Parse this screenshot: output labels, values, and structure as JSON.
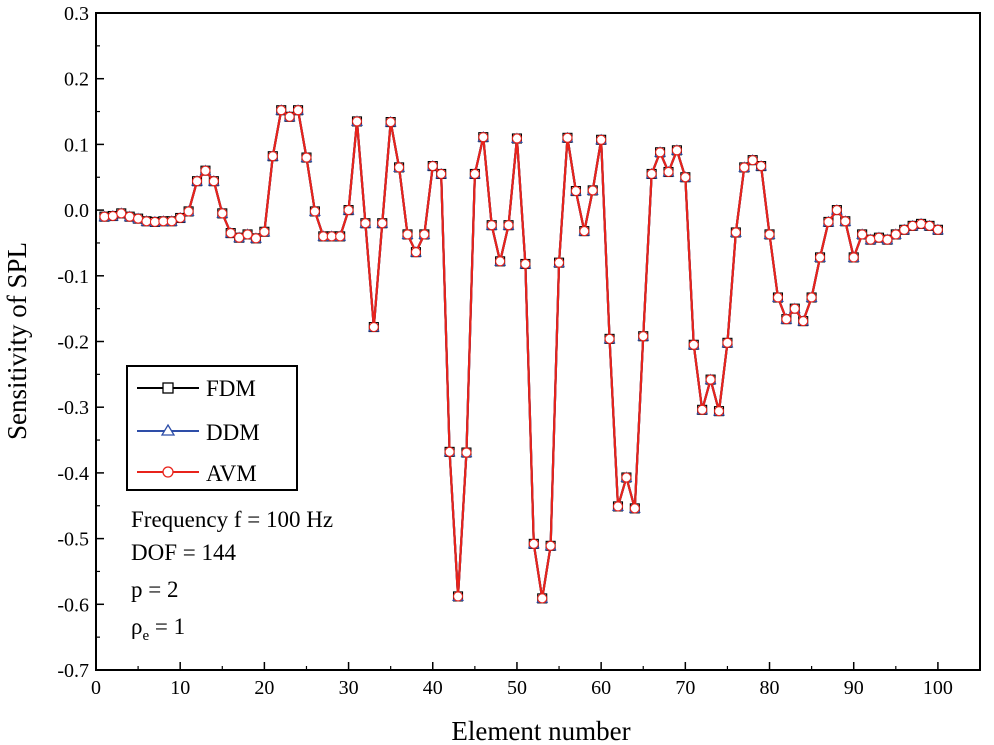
{
  "chart_data": {
    "type": "line",
    "title": "",
    "xlabel": "Element number",
    "ylabel": "Sensitivity of SPL",
    "xlim": [
      0,
      105
    ],
    "ylim": [
      -0.7,
      0.3
    ],
    "xticks": [
      0,
      10,
      20,
      30,
      40,
      50,
      60,
      70,
      80,
      90,
      100
    ],
    "yticks": [
      0.3,
      0.2,
      0.1,
      0.0,
      -0.1,
      -0.2,
      -0.3,
      -0.4,
      -0.5,
      -0.6,
      -0.7
    ],
    "ytick_labels": [
      "0.3",
      "0.2",
      "0.1",
      "0.0",
      "-0.1",
      "-0.2",
      "-0.3",
      "-0.4",
      "-0.5",
      "-0.6",
      "-0.7"
    ],
    "grid": false,
    "legend_position": "middle-left",
    "x": [
      1,
      2,
      3,
      4,
      5,
      6,
      7,
      8,
      9,
      10,
      11,
      12,
      13,
      14,
      15,
      16,
      17,
      18,
      19,
      20,
      21,
      22,
      23,
      24,
      25,
      26,
      27,
      28,
      29,
      30,
      31,
      32,
      33,
      34,
      35,
      36,
      37,
      38,
      39,
      40,
      41,
      42,
      43,
      44,
      45,
      46,
      47,
      48,
      49,
      50,
      51,
      52,
      53,
      54,
      55,
      56,
      57,
      58,
      59,
      60,
      61,
      62,
      63,
      64,
      65,
      66,
      67,
      68,
      69,
      70,
      71,
      72,
      73,
      74,
      75,
      76,
      77,
      78,
      79,
      80,
      81,
      82,
      83,
      84,
      85,
      86,
      87,
      88,
      89,
      90,
      91,
      92,
      93,
      94,
      95,
      96,
      97,
      98,
      99,
      100
    ],
    "series": [
      {
        "name": "FDM",
        "color": "#000000",
        "marker": "square",
        "values": [
          -0.01,
          -0.009,
          -0.005,
          -0.01,
          -0.013,
          -0.017,
          -0.018,
          -0.017,
          -0.017,
          -0.012,
          -0.002,
          0.044,
          0.06,
          0.044,
          -0.005,
          -0.035,
          -0.042,
          -0.037,
          -0.043,
          -0.033,
          0.082,
          0.152,
          0.142,
          0.152,
          0.08,
          -0.002,
          -0.04,
          -0.04,
          -0.04,
          0.0,
          0.135,
          -0.02,
          -0.178,
          -0.02,
          0.134,
          0.065,
          -0.037,
          -0.064,
          -0.037,
          0.067,
          0.055,
          -0.368,
          -0.588,
          -0.369,
          0.055,
          0.111,
          -0.023,
          -0.078,
          -0.023,
          0.109,
          -0.082,
          -0.508,
          -0.591,
          -0.511,
          -0.08,
          0.11,
          0.029,
          -0.032,
          0.03,
          0.107,
          -0.196,
          -0.451,
          -0.407,
          -0.454,
          -0.192,
          0.055,
          0.088,
          0.058,
          0.091,
          0.05,
          -0.205,
          -0.304,
          -0.258,
          -0.306,
          -0.202,
          -0.034,
          0.065,
          0.076,
          0.067,
          -0.037,
          -0.133,
          -0.166,
          -0.15,
          -0.169,
          -0.133,
          -0.072,
          -0.018,
          0.0,
          -0.017,
          -0.072,
          -0.037,
          -0.045,
          -0.042,
          -0.045,
          -0.037,
          -0.03,
          -0.024,
          -0.021,
          -0.024,
          -0.03
        ]
      },
      {
        "name": "DDM",
        "color": "#2e4ea8",
        "marker": "triangle",
        "values": [
          -0.01,
          -0.009,
          -0.005,
          -0.01,
          -0.013,
          -0.017,
          -0.018,
          -0.017,
          -0.017,
          -0.012,
          -0.002,
          0.044,
          0.06,
          0.044,
          -0.005,
          -0.035,
          -0.042,
          -0.037,
          -0.043,
          -0.033,
          0.082,
          0.152,
          0.142,
          0.152,
          0.08,
          -0.002,
          -0.04,
          -0.04,
          -0.04,
          0.0,
          0.135,
          -0.02,
          -0.178,
          -0.02,
          0.134,
          0.065,
          -0.037,
          -0.064,
          -0.037,
          0.067,
          0.055,
          -0.368,
          -0.588,
          -0.369,
          0.055,
          0.111,
          -0.023,
          -0.078,
          -0.023,
          0.109,
          -0.082,
          -0.508,
          -0.591,
          -0.511,
          -0.08,
          0.11,
          0.029,
          -0.032,
          0.03,
          0.107,
          -0.196,
          -0.451,
          -0.407,
          -0.454,
          -0.192,
          0.055,
          0.088,
          0.058,
          0.091,
          0.05,
          -0.205,
          -0.304,
          -0.258,
          -0.306,
          -0.202,
          -0.034,
          0.065,
          0.076,
          0.067,
          -0.037,
          -0.133,
          -0.166,
          -0.15,
          -0.169,
          -0.133,
          -0.072,
          -0.018,
          0.0,
          -0.017,
          -0.072,
          -0.037,
          -0.045,
          -0.042,
          -0.045,
          -0.037,
          -0.03,
          -0.024,
          -0.021,
          -0.024,
          -0.03
        ]
      },
      {
        "name": "AVM",
        "color": "#e8231b",
        "marker": "circle",
        "values": [
          -0.01,
          -0.009,
          -0.005,
          -0.01,
          -0.013,
          -0.017,
          -0.018,
          -0.017,
          -0.017,
          -0.012,
          -0.002,
          0.044,
          0.06,
          0.044,
          -0.005,
          -0.035,
          -0.042,
          -0.037,
          -0.043,
          -0.033,
          0.082,
          0.152,
          0.142,
          0.152,
          0.08,
          -0.002,
          -0.04,
          -0.04,
          -0.04,
          0.0,
          0.135,
          -0.02,
          -0.178,
          -0.02,
          0.134,
          0.065,
          -0.037,
          -0.064,
          -0.037,
          0.067,
          0.055,
          -0.368,
          -0.588,
          -0.369,
          0.055,
          0.111,
          -0.023,
          -0.078,
          -0.023,
          0.109,
          -0.082,
          -0.508,
          -0.591,
          -0.511,
          -0.08,
          0.11,
          0.029,
          -0.032,
          0.03,
          0.107,
          -0.196,
          -0.451,
          -0.407,
          -0.454,
          -0.192,
          0.055,
          0.088,
          0.058,
          0.091,
          0.05,
          -0.205,
          -0.304,
          -0.258,
          -0.306,
          -0.202,
          -0.034,
          0.065,
          0.076,
          0.067,
          -0.037,
          -0.133,
          -0.166,
          -0.15,
          -0.169,
          -0.133,
          -0.072,
          -0.018,
          0.0,
          -0.017,
          -0.072,
          -0.037,
          -0.045,
          -0.042,
          -0.045,
          -0.037,
          -0.03,
          -0.024,
          -0.021,
          -0.024,
          -0.03
        ]
      }
    ],
    "annotations": [
      {
        "text": "Frequency f = 100 Hz"
      },
      {
        "text": "DOF = 144"
      },
      {
        "text": "p = 2"
      },
      {
        "text": "ρ",
        "subscript": "e",
        "suffix": " = 1"
      }
    ]
  }
}
